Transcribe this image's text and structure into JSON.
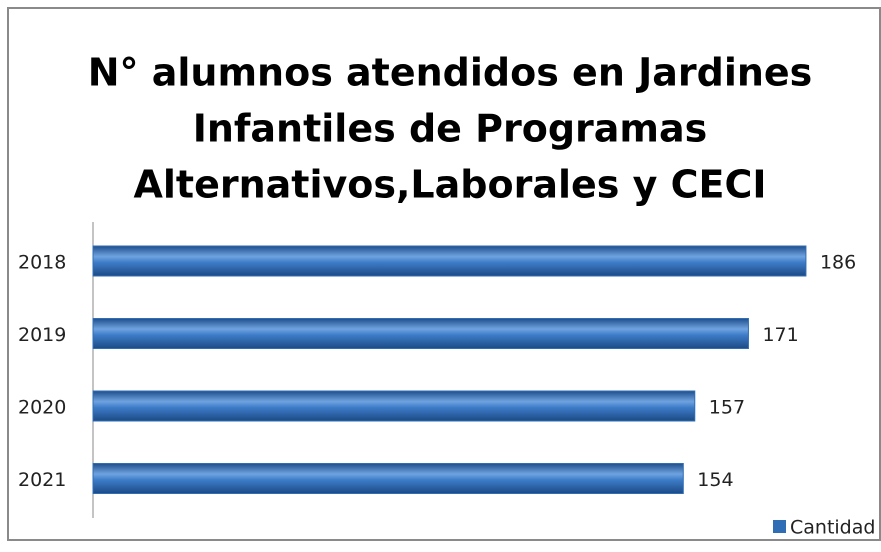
{
  "chart_data": {
    "type": "bar",
    "orientation": "horizontal",
    "title": [
      "N° alumnos atendidos en Jardines",
      "Infantiles de Programas",
      "Alternativos,Laborales y CECI"
    ],
    "categories": [
      "2018",
      "2019",
      "2020",
      "2021"
    ],
    "series": [
      {
        "name": "Cantidad",
        "color": "#2f6db4",
        "values": [
          186,
          171,
          157,
          154
        ]
      }
    ],
    "legend": "bottom-right"
  }
}
